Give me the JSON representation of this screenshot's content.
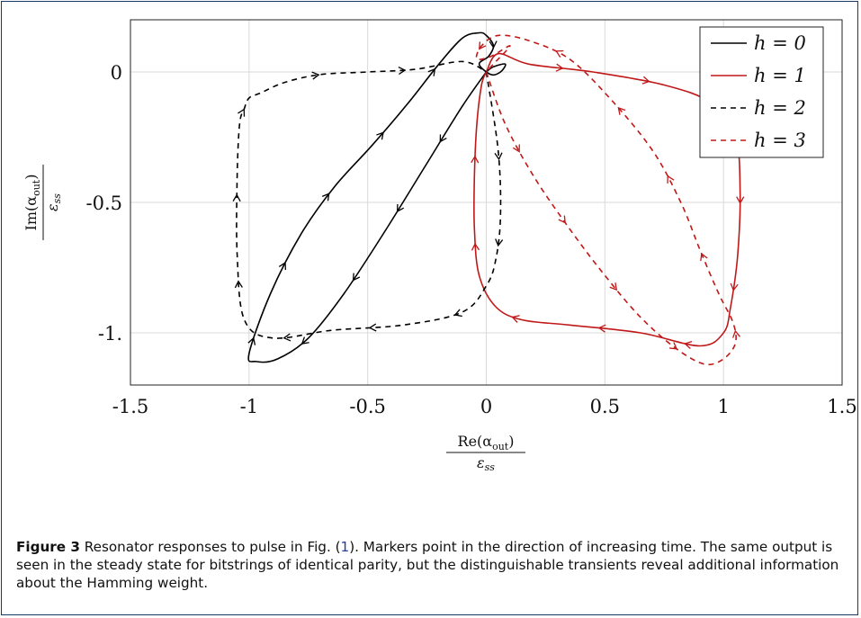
{
  "caption": {
    "label": "Figure 3",
    "text_before_ref": " Resonator responses to pulse in Fig. (",
    "ref": "1",
    "text_after_ref": "). Markers point in the direction of increasing time. The same output is seen in the steady state for bitstrings of identical parity, but the distinguishable transients reveal additional information about the Hamming weight."
  },
  "chart_data": {
    "type": "line",
    "title": "",
    "xlabel_num": "Re(α_out)",
    "xlabel_den": "ε_ss",
    "ylabel_num": "Im(α_out)",
    "ylabel_den": "ε_ss",
    "xlim": [
      -1.5,
      1.5
    ],
    "ylim": [
      -1.2,
      0.2
    ],
    "x_ticks": [
      -1.5,
      -1,
      -0.5,
      0,
      0.5,
      1,
      1.5
    ],
    "x_tick_labels": [
      "-1.5",
      "-1",
      "-0.5",
      "0",
      "0.5",
      "1",
      "1.5"
    ],
    "y_ticks": [
      -1,
      -0.5,
      0
    ],
    "y_tick_labels": [
      "-1.",
      "-0.5",
      "0"
    ],
    "grid": true,
    "legend_position": "top-right",
    "series": [
      {
        "name": "h = 0",
        "color": "#000000",
        "dash": "solid",
        "x": [
          0.0,
          -0.1,
          -0.25,
          -0.42,
          -0.6,
          -0.75,
          -0.88,
          -0.97,
          -1.0,
          -0.91,
          -0.78,
          -0.64,
          -0.48,
          -0.33,
          -0.2,
          -0.1,
          -0.03,
          0.0,
          0.03,
          0.01,
          -0.03,
          0.02,
          0.06,
          0.08,
          0.03,
          0.0
        ],
        "y": [
          0.0,
          -0.13,
          -0.35,
          -0.6,
          -0.85,
          -1.02,
          -1.1,
          -1.11,
          -1.08,
          -0.85,
          -0.62,
          -0.44,
          -0.28,
          -0.12,
          0.03,
          0.13,
          0.15,
          0.14,
          0.1,
          0.06,
          0.03,
          -0.01,
          0.0,
          0.03,
          0.02,
          0.0
        ]
      },
      {
        "name": "h = 1",
        "color": "#c01818",
        "dash": "solid",
        "x": [
          0.0,
          0.05,
          0.18,
          0.45,
          0.75,
          0.95,
          1.05,
          1.07,
          1.06,
          1.03,
          1.0,
          0.9,
          0.65,
          0.35,
          0.15,
          0.04,
          -0.03,
          -0.05,
          -0.05,
          -0.04,
          -0.02,
          0.0
        ],
        "y": [
          0.0,
          0.07,
          0.03,
          0.0,
          -0.05,
          -0.12,
          -0.25,
          -0.45,
          -0.7,
          -0.9,
          -1.0,
          -1.05,
          -1.0,
          -0.97,
          -0.95,
          -0.9,
          -0.78,
          -0.6,
          -0.4,
          -0.2,
          -0.05,
          0.0
        ]
      },
      {
        "name": "h = 2",
        "color": "#000000",
        "dash": "dashed",
        "x": [
          0.0,
          0.05,
          0.06,
          0.04,
          0.0,
          -0.1,
          -0.35,
          -0.65,
          -0.9,
          -1.02,
          -1.05,
          -1.05,
          -1.04,
          -1.02,
          -1.0,
          -0.95,
          -0.85,
          -0.7,
          -0.5,
          -0.3,
          -0.1,
          0.0
        ],
        "y": [
          0.0,
          -0.3,
          -0.55,
          -0.72,
          -0.82,
          -0.92,
          -0.97,
          -0.99,
          -1.02,
          -0.95,
          -0.7,
          -0.4,
          -0.2,
          -0.14,
          -0.1,
          -0.08,
          -0.04,
          -0.01,
          0.0,
          0.01,
          0.04,
          0.0
        ]
      },
      {
        "name": "h = 3",
        "color": "#c01818",
        "dash": "dashed",
        "x": [
          0.0,
          0.08,
          0.2,
          0.35,
          0.5,
          0.65,
          0.8,
          0.92,
          1.0,
          1.05,
          1.04,
          0.98,
          0.9,
          0.82,
          0.7,
          0.52,
          0.35,
          0.18,
          0.05,
          -0.02,
          -0.04,
          0.02,
          0.1,
          0.03,
          0.0
        ],
        "y": [
          0.0,
          -0.2,
          -0.4,
          -0.6,
          -0.78,
          -0.94,
          -1.06,
          -1.12,
          -1.1,
          -1.04,
          -0.96,
          -0.85,
          -0.68,
          -0.5,
          -0.3,
          -0.1,
          0.05,
          0.12,
          0.14,
          0.1,
          0.05,
          0.06,
          0.1,
          0.03,
          0.0
        ]
      }
    ]
  }
}
